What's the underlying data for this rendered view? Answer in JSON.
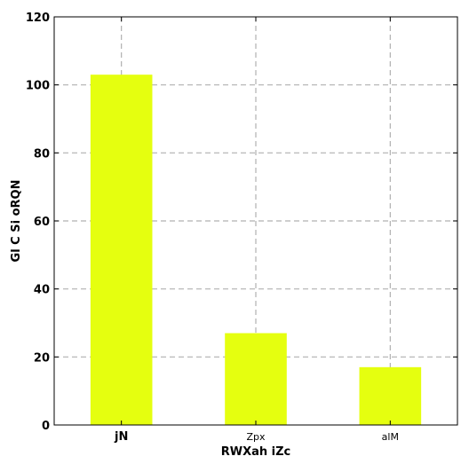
{
  "chart_data": {
    "type": "bar",
    "categories": [
      "jN",
      "Zpx",
      "alM"
    ],
    "values": [
      103,
      27,
      17
    ],
    "xlabel": "RWXah iZc",
    "ylabel": "Gl C Si oRQN",
    "ylim": [
      0,
      120
    ],
    "yticks": [
      0,
      20,
      40,
      60,
      80,
      100,
      120
    ],
    "grid": true,
    "bar_color": "#e5ff0f",
    "bold_category_labels": [
      "jN"
    ]
  }
}
